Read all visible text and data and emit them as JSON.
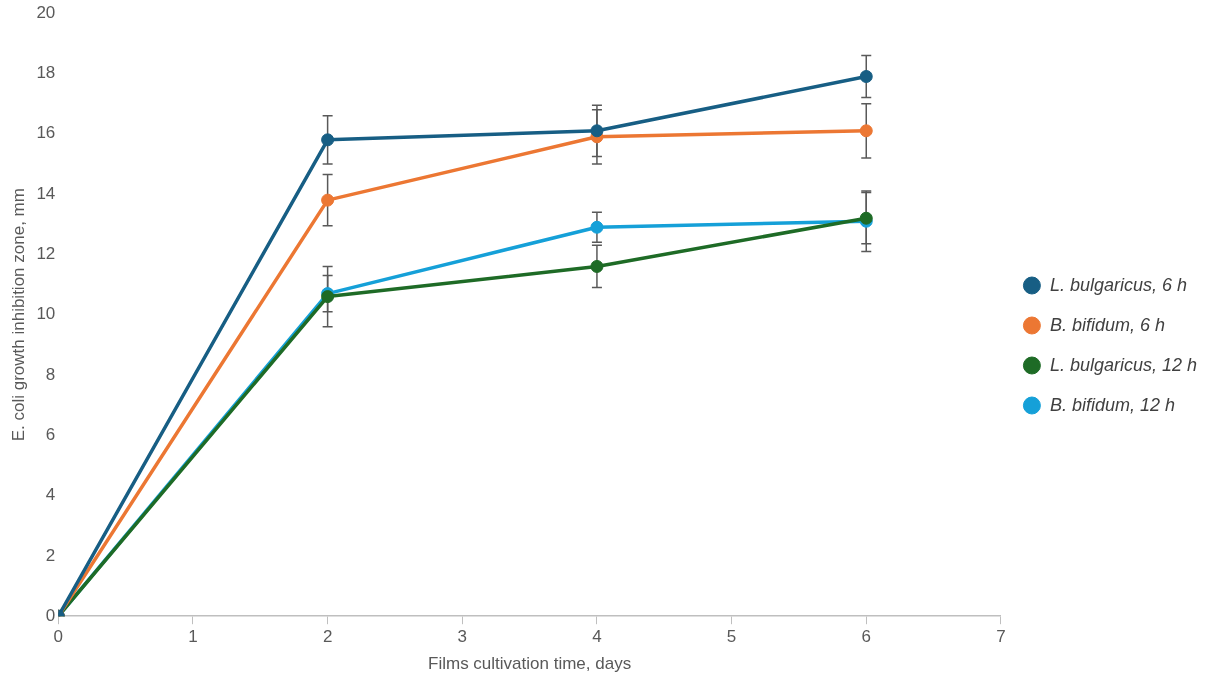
{
  "chart_data": {
    "type": "line",
    "xlabel": "Films cultivation time, days",
    "ylabel": "E. coli growth inhibition zone, mm",
    "x": [
      0,
      2,
      4,
      6
    ],
    "xlim": [
      0,
      7
    ],
    "xticks": [
      0,
      1,
      2,
      3,
      4,
      5,
      6,
      7
    ],
    "ylim": [
      0,
      20
    ],
    "yticks": [
      0,
      2,
      4,
      6,
      8,
      10,
      12,
      14,
      16,
      18,
      20
    ],
    "grid": false,
    "legend": "right",
    "marker": "circle",
    "line_style": "solid",
    "series": [
      {
        "name": "L. bulgaricus, 6 h",
        "color": "#175e84",
        "values": [
          0,
          15.8,
          16.1,
          17.9
        ],
        "errors": [
          null,
          0.8,
          0.85,
          0.7
        ]
      },
      {
        "name": "B. bifidum, 6 h",
        "color": "#ec7733",
        "values": [
          0,
          13.8,
          15.9,
          16.1
        ],
        "errors": [
          null,
          0.85,
          0.9,
          0.9
        ]
      },
      {
        "name": "L. bulgaricus, 12 h",
        "color": "#1e6b26",
        "values": [
          0,
          10.6,
          11.6,
          13.2
        ],
        "errors": [
          null,
          1.0,
          0.7,
          0.85
        ]
      },
      {
        "name": "B. bifidum, 12 h",
        "color": "#15a0d8",
        "values": [
          0,
          10.7,
          12.9,
          13.1
        ],
        "errors": [
          null,
          0.6,
          0.5,
          1.0
        ]
      }
    ]
  }
}
